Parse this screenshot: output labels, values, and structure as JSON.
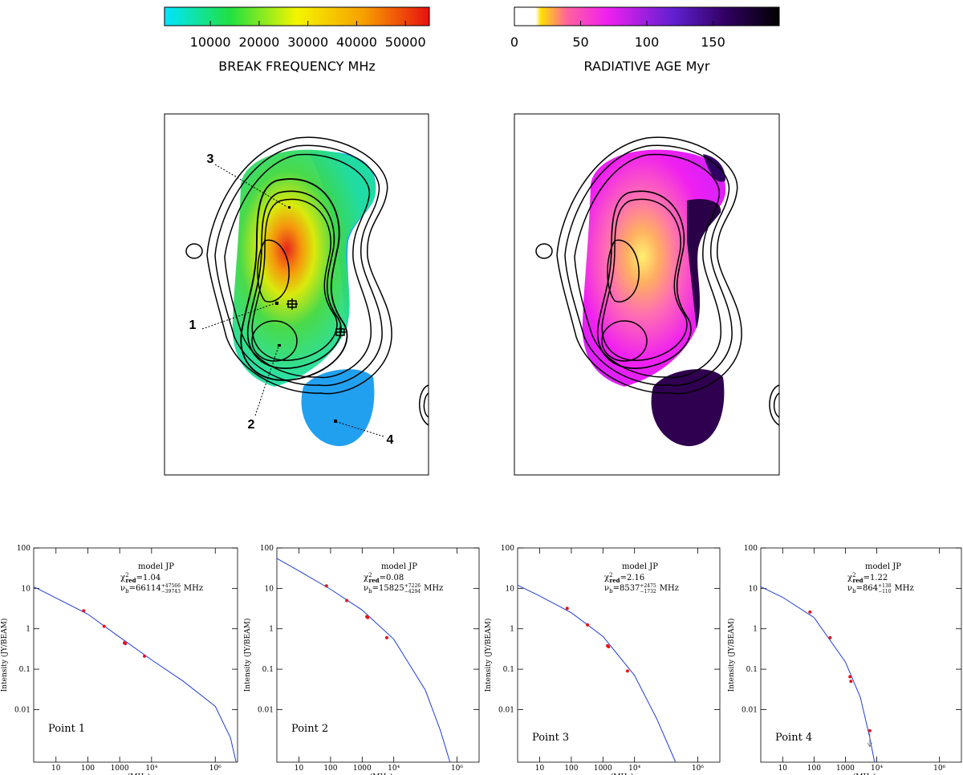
{
  "colorbars": [
    {
      "label": "BREAK FREQUENCY MHz",
      "lim": [
        600,
        54900
      ],
      "ticks": [
        10000,
        20000,
        30000,
        40000,
        50000
      ]
    },
    {
      "label": "RADIATIVE AGE Myr",
      "lim": [
        0,
        200
      ],
      "ticks": [
        0,
        50,
        100,
        150
      ]
    }
  ],
  "map_labels": [
    "3",
    "1",
    "2",
    "4"
  ],
  "chart_data": [
    {
      "type": "scatter",
      "label": "Point 1",
      "xlabel": "ν (MHz)",
      "ylabel": "Intensity (JY/BEAM)",
      "log_x": true,
      "log_y": true,
      "xlim": [
        2,
        5000000
      ],
      "ylim": [
        0.0005,
        100
      ],
      "xticks": [
        10,
        100,
        1000,
        {
          "value": 10000,
          "label": "10⁴"
        },
        {
          "value": 1000000,
          "label": "10⁶"
        }
      ],
      "yticks": [
        0.01,
        0.1,
        1,
        10,
        100
      ],
      "fit": {
        "model": "model JP",
        "chi_symbol": "χ",
        "chi_sup": "2",
        "chi_sub": "red",
        "equals": "=",
        "chi_value": 1.04,
        "nu_symbol": "ν",
        "nu_sub": "b",
        "nu_value": 66114,
        "nu_plus": {
          "value": 47566,
          "label": "+47566"
        },
        "nu_minus": {
          "value": 39743,
          "label": "−39743"
        },
        "unit": "MHz"
      },
      "points": {
        "color": "#e8141b",
        "x": [
          74,
          325,
          1400,
          1500,
          6000
        ],
        "values": [
          2.8,
          1.15,
          0.45,
          0.43,
          0.21
        ],
        "upper_limits": [
          false,
          false,
          false,
          false,
          false
        ]
      },
      "model_curve": {
        "color": "#1f3fd6",
        "x": [
          2,
          10,
          100,
          1000,
          10000,
          100000,
          1000000,
          3000000,
          4500000
        ],
        "values": [
          11,
          5.8,
          2.3,
          0.62,
          0.17,
          0.05,
          0.012,
          0.002,
          0.0005
        ]
      }
    },
    {
      "type": "scatter",
      "label": "Point 2",
      "xlabel": "ν (MHz)",
      "ylabel": "Intensity (JY/BEAM)",
      "log_x": true,
      "log_y": true,
      "xlim": [
        2,
        5000000
      ],
      "ylim": [
        0.0005,
        100
      ],
      "xticks": [
        10,
        100,
        1000,
        {
          "value": 10000,
          "label": "10⁴"
        },
        {
          "value": 1000000,
          "label": "10⁶"
        }
      ],
      "yticks": [
        0.01,
        0.1,
        1,
        10,
        100
      ],
      "fit": {
        "model": "model JP",
        "chi_symbol": "χ",
        "chi_sup": "2",
        "chi_sub": "red",
        "equals": "=",
        "chi_value": 0.08,
        "nu_symbol": "ν",
        "nu_sub": "b",
        "nu_value": 15825,
        "nu_plus": {
          "value": 7226,
          "label": "+7226"
        },
        "nu_minus": {
          "value": 4294,
          "label": "−4294"
        },
        "unit": "MHz"
      },
      "points": {
        "color": "#e8141b",
        "x": [
          74,
          325,
          1400,
          1500,
          6000
        ],
        "values": [
          11.5,
          5,
          2.0,
          1.9,
          0.6
        ],
        "upper_limits": [
          false,
          false,
          false,
          false,
          false
        ]
      },
      "model_curve": {
        "color": "#1f3fd6",
        "x": [
          2,
          10,
          100,
          1000,
          10000,
          100000,
          300000,
          600000
        ],
        "values": [
          55,
          27,
          9.5,
          2.9,
          0.55,
          0.03,
          0.003,
          0.0005
        ]
      }
    },
    {
      "type": "scatter",
      "label": "Point 3",
      "xlabel": "ν (MHz)",
      "ylabel": "Intensity (JY/BEAM)",
      "log_x": true,
      "log_y": true,
      "xlim": [
        2,
        5000000
      ],
      "ylim": [
        0.0005,
        100
      ],
      "xticks": [
        10,
        100,
        1000,
        {
          "value": 10000,
          "label": "10⁴"
        },
        {
          "value": 1000000,
          "label": "10⁶"
        }
      ],
      "yticks": [
        0.01,
        0.1,
        1,
        10,
        100
      ],
      "fit": {
        "model": "model JP",
        "chi_symbol": "χ",
        "chi_sup": "2",
        "chi_sub": "red",
        "equals": "=",
        "chi_value": 2.16,
        "nu_symbol": "ν",
        "nu_sub": "b",
        "nu_value": 8537,
        "nu_plus": {
          "value": 2475,
          "label": "+2475"
        },
        "nu_minus": {
          "value": 1732,
          "label": "−1732"
        },
        "unit": "MHz"
      },
      "points": {
        "color": "#e8141b",
        "x": [
          74,
          325,
          1400,
          1500,
          6000
        ],
        "values": [
          3.2,
          1.25,
          0.38,
          0.36,
          0.09
        ],
        "upper_limits": [
          false,
          false,
          false,
          false,
          false
        ]
      },
      "model_curve": {
        "color": "#1f3fd6",
        "x": [
          2,
          10,
          100,
          1000,
          10000,
          50000,
          200000
        ],
        "values": [
          12,
          6.5,
          2.5,
          0.65,
          0.07,
          0.006,
          0.0005
        ]
      }
    },
    {
      "type": "scatter",
      "label": "Point 4",
      "xlabel": "ν (MHz)",
      "ylabel": "Intensity (JY/BEAM)",
      "log_x": true,
      "log_y": true,
      "xlim": [
        2,
        5000000
      ],
      "ylim": [
        0.0005,
        100
      ],
      "xticks": [
        10,
        100,
        1000,
        {
          "value": 10000,
          "label": "10⁴"
        },
        {
          "value": 1000000,
          "label": "10⁶"
        }
      ],
      "yticks": [
        0.01,
        0.1,
        1,
        10,
        100
      ],
      "fit": {
        "model": "model JP",
        "chi_symbol": "χ",
        "chi_sup": "2",
        "chi_sub": "red",
        "equals": "=",
        "chi_value": 1.22,
        "nu_symbol": "ν",
        "nu_sub": "b",
        "nu_value": 864,
        "nu_plus": {
          "value": 138,
          "label": "+138"
        },
        "nu_minus": {
          "value": 110,
          "label": "−110"
        },
        "unit": "MHz"
      },
      "points": {
        "color": "#e8141b",
        "x": [
          74,
          325,
          1400,
          1500,
          6000
        ],
        "values": [
          2.6,
          0.6,
          0.065,
          0.05,
          0.003
        ],
        "upper_limits": [
          false,
          false,
          false,
          false,
          true
        ]
      },
      "model_curve": {
        "color": "#1f3fd6",
        "x": [
          2,
          10,
          100,
          1000,
          3000,
          6000,
          8500
        ],
        "values": [
          11,
          6,
          1.9,
          0.15,
          0.02,
          0.002,
          0.0005
        ]
      }
    }
  ]
}
